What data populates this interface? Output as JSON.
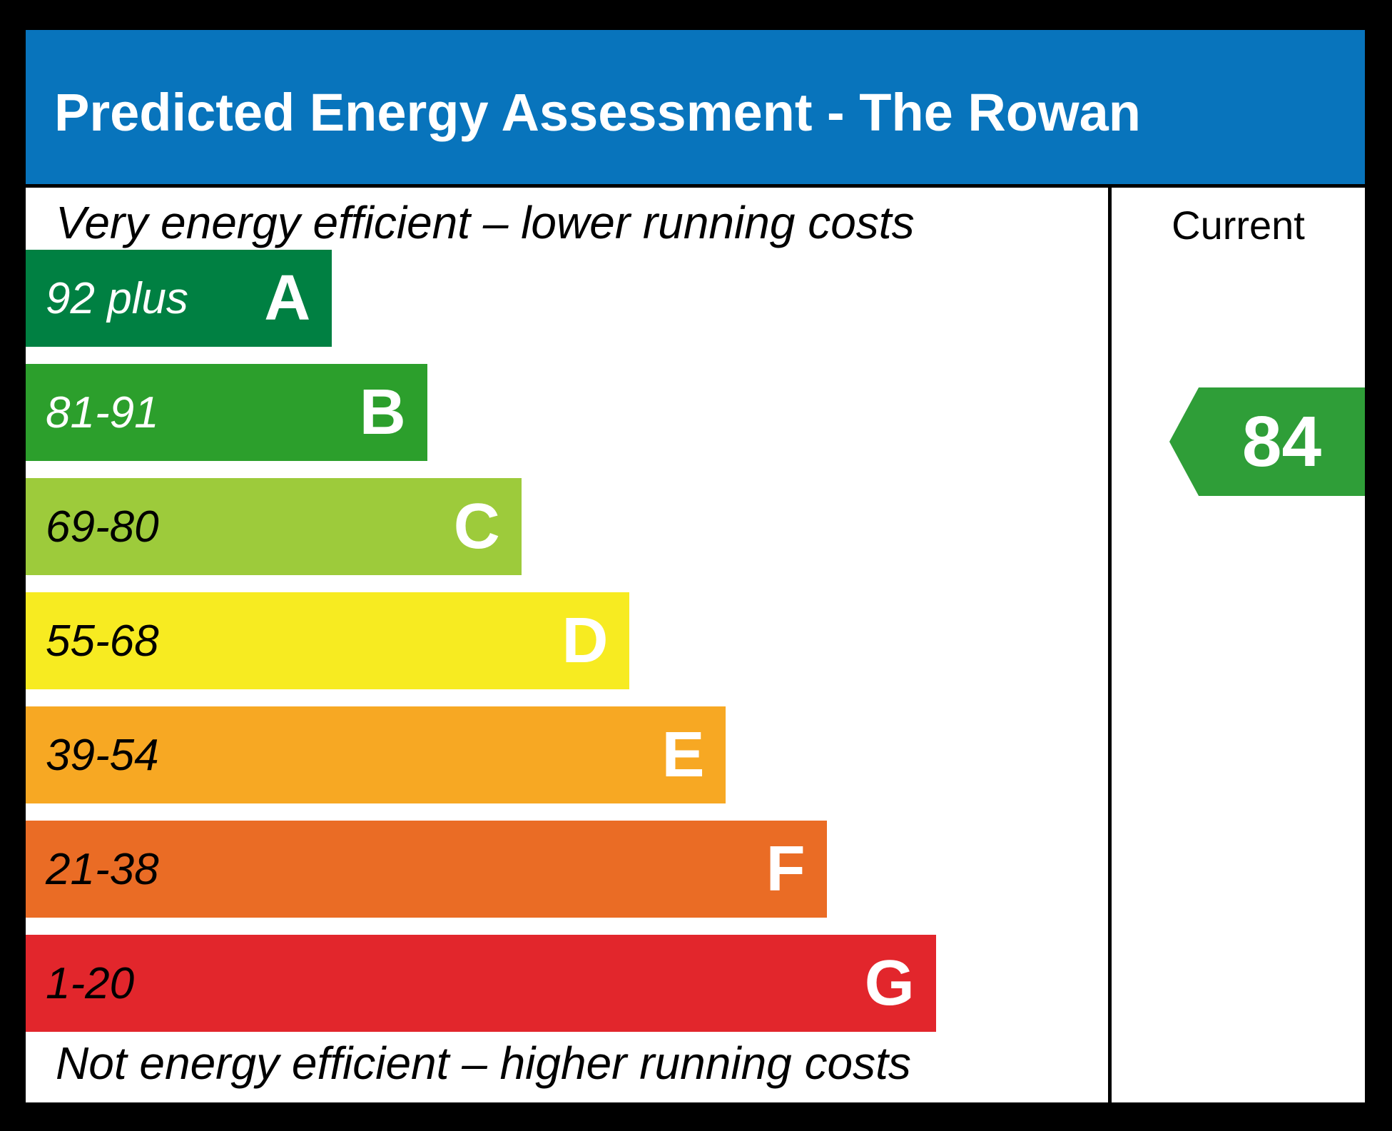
{
  "title": "Predicted Energy Assessment - The Rowan",
  "panel": {
    "top_caption": "Very energy efficient – lower running costs",
    "bottom_caption": "Not energy efficient – higher running costs"
  },
  "current_column": {
    "header": "Current",
    "value": "84",
    "arrow_color": "#2F9E38"
  },
  "bands": [
    {
      "letter": "A",
      "range": "92 plus",
      "color": "#008042",
      "range_color": "#ffffff",
      "width_pct": 28.3
    },
    {
      "letter": "B",
      "range": "81-91",
      "color": "#2C9F2C",
      "range_color": "#ffffff",
      "width_pct": 37.1
    },
    {
      "letter": "C",
      "range": "69-80",
      "color": "#9DCB3B",
      "range_color": "#000000",
      "width_pct": 45.8
    },
    {
      "letter": "D",
      "range": "55-68",
      "color": "#F7EB21",
      "range_color": "#000000",
      "width_pct": 55.8
    },
    {
      "letter": "E",
      "range": "39-54",
      "color": "#F7A823",
      "range_color": "#000000",
      "width_pct": 64.7
    },
    {
      "letter": "F",
      "range": "21-38",
      "color": "#EA6C25",
      "range_color": "#000000",
      "width_pct": 74.0
    },
    {
      "letter": "G",
      "range": "1-20",
      "color": "#E2262C",
      "range_color": "#000000",
      "width_pct": 84.1
    }
  ],
  "colors": {
    "banner_blue": "#0874BC",
    "background": "#000000",
    "panel_white": "#ffffff"
  },
  "chart_data": {
    "type": "bar",
    "title": "Predicted Energy Assessment - The Rowan",
    "categories": [
      "A",
      "B",
      "C",
      "D",
      "E",
      "F",
      "G"
    ],
    "ranges": [
      "92 plus",
      "81-91",
      "69-80",
      "55-68",
      "39-54",
      "21-38",
      "1-20"
    ],
    "bar_width_fractions": [
      0.283,
      0.371,
      0.458,
      0.558,
      0.647,
      0.74,
      0.841
    ],
    "bar_colors": [
      "#008042",
      "#2C9F2C",
      "#9DCB3B",
      "#F7EB21",
      "#F7A823",
      "#EA6C25",
      "#E2262C"
    ],
    "current": {
      "value": 84,
      "band": "B"
    },
    "annotation_top": "Very energy efficient – lower running costs",
    "annotation_bottom": "Not energy efficient – higher running costs",
    "column_header": "Current",
    "legend_position": "right"
  }
}
